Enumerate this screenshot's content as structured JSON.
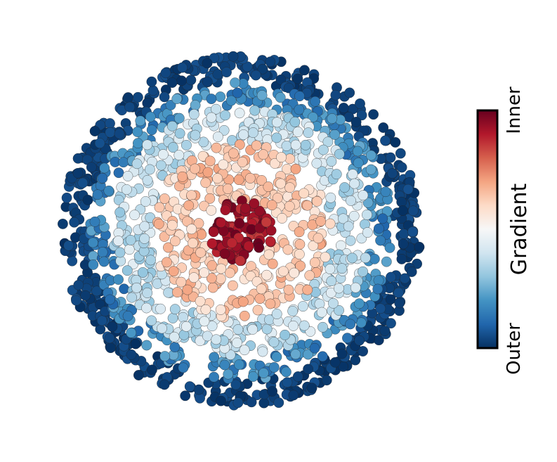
{
  "chart_data": {
    "type": "scatter",
    "title": "",
    "xlabel": "",
    "ylabel": "",
    "grid": false,
    "colorbar": {
      "label": "Gradient",
      "tick_labels": [
        "Outer",
        "Inner"
      ],
      "colormap": "RdBu_r",
      "colormap_stops": [
        "#053061",
        "#2166ac",
        "#4393c3",
        "#92c5de",
        "#d1e5f0",
        "#f7f7f7",
        "#fddbc7",
        "#f4a582",
        "#d6604d",
        "#b2182b",
        "#67001f"
      ],
      "placement": "right"
    },
    "description_of_distribution": "Points fill a disc; colour value = 1 - normalized radius (inner = 1, outer = 0)",
    "rings": [
      {
        "value_range": [
          0.85,
          1.0
        ],
        "radius_range": [
          0.0,
          0.18
        ],
        "count": 90
      },
      {
        "value_range": [
          0.55,
          0.7
        ],
        "radius_range": [
          0.18,
          0.5
        ],
        "count": 330
      },
      {
        "value_range": [
          0.3,
          0.45
        ],
        "radius_range": [
          0.5,
          0.72
        ],
        "count": 420
      },
      {
        "value_range": [
          0.1,
          0.25
        ],
        "radius_range": [
          0.72,
          0.85
        ],
        "count": 330
      },
      {
        "value_range": [
          0.0,
          0.06
        ],
        "radius_range": [
          0.85,
          1.0
        ],
        "count": 560
      }
    ],
    "xlim": [
      -1.05,
      1.05
    ],
    "ylim": [
      -1.05,
      1.05
    ]
  }
}
